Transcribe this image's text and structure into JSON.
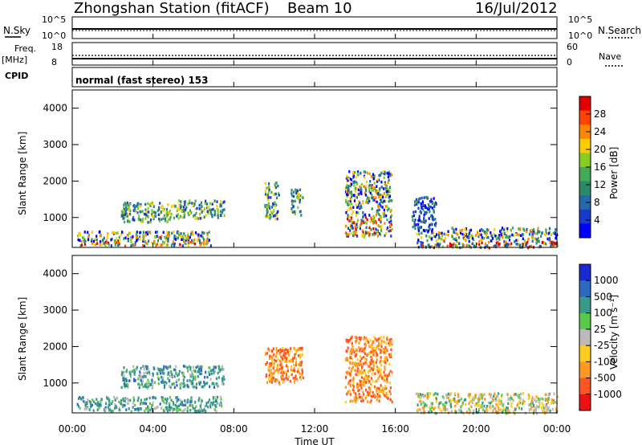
{
  "header": {
    "station": "Zhongshan Station (fitACF)",
    "beam": "Beam 10",
    "date": "16/Jul/2012"
  },
  "top_panels": {
    "nsky_label": "N.Sky",
    "nsky_ticks": [
      "10^5",
      "10^0"
    ],
    "nsearch_label": "N.Search",
    "nsearch_ticks": [
      "10^5",
      "10^0"
    ],
    "freq_label": "Freq.",
    "freq_unit": "[MHz]",
    "freq_ticks": [
      "18",
      "8"
    ],
    "nave_label": "Nave",
    "nave_ticks": [
      "60",
      "0"
    ],
    "cpid_label": "CPID",
    "cpid_text": "normal (fast stereo) 153"
  },
  "axes": {
    "ylabel": "Slant Range [km]",
    "xlabel": "Time UT",
    "yticks": [
      "4000",
      "3000",
      "2000",
      "1000"
    ],
    "xticks": [
      "00:00",
      "04:00",
      "08:00",
      "12:00",
      "16:00",
      "20:00",
      "00:00"
    ]
  },
  "power_colorbar": {
    "label": "Power [dB]",
    "ticks": [
      "28",
      "24",
      "20",
      "16",
      "12",
      "8",
      "4"
    ],
    "colors": [
      "#e00000",
      "#ff4400",
      "#ff8800",
      "#ffcc00",
      "#88cc22",
      "#44aa55",
      "#2a8a6a",
      "#246aaa",
      "#1a3acc",
      "#0000ff"
    ]
  },
  "velocity_colorbar": {
    "label": "Velocity [m s⁻¹]",
    "ticks": [
      "1000",
      "500",
      "100",
      "25",
      "-25",
      "-100",
      "-500",
      "-1000"
    ],
    "colors": [
      "#1a2ad0",
      "#2a6ac0",
      "#3a9a8a",
      "#5ac84a",
      "#bbbbbb",
      "#ffcc22",
      "#ff9922",
      "#ff5522",
      "#ee1111"
    ]
  },
  "chart_data": {
    "type": "heatmap",
    "x_range_hours": [
      0,
      24
    ],
    "y_range_km": [
      180,
      4500
    ],
    "power_echo_regions": [
      {
        "t0": 0.2,
        "t1": 6.9,
        "r0": 250,
        "r1": 650,
        "level": "high"
      },
      {
        "t0": 17.0,
        "t1": 24.0,
        "r0": 200,
        "r1": 750,
        "level": "high"
      },
      {
        "t0": 2.4,
        "t1": 4.9,
        "r0": 900,
        "r1": 1450,
        "level": "medium"
      },
      {
        "t0": 5.0,
        "t1": 7.5,
        "r0": 1000,
        "r1": 1500,
        "level": "medium"
      },
      {
        "t0": 9.5,
        "t1": 10.2,
        "r0": 1000,
        "r1": 2000,
        "level": "medium"
      },
      {
        "t0": 10.8,
        "t1": 11.4,
        "r0": 1100,
        "r1": 1800,
        "level": "medium"
      },
      {
        "t0": 13.5,
        "t1": 15.8,
        "r0": 500,
        "r1": 2300,
        "level": "high"
      },
      {
        "t0": 16.8,
        "t1": 18.0,
        "r0": 700,
        "r1": 1600,
        "level": "low"
      }
    ],
    "velocity_echo_regions": [
      {
        "t0": 0.2,
        "t1": 7.4,
        "r0": 250,
        "r1": 650,
        "sign": "positive"
      },
      {
        "t0": 2.4,
        "t1": 7.5,
        "r0": 900,
        "r1": 1500,
        "sign": "positive"
      },
      {
        "t0": 9.5,
        "t1": 11.4,
        "r0": 1000,
        "r1": 2000,
        "sign": "negative"
      },
      {
        "t0": 13.5,
        "t1": 15.8,
        "r0": 500,
        "r1": 2300,
        "sign": "negative"
      },
      {
        "t0": 17.0,
        "t1": 24.0,
        "r0": 200,
        "r1": 750,
        "sign": "mixed"
      }
    ]
  }
}
